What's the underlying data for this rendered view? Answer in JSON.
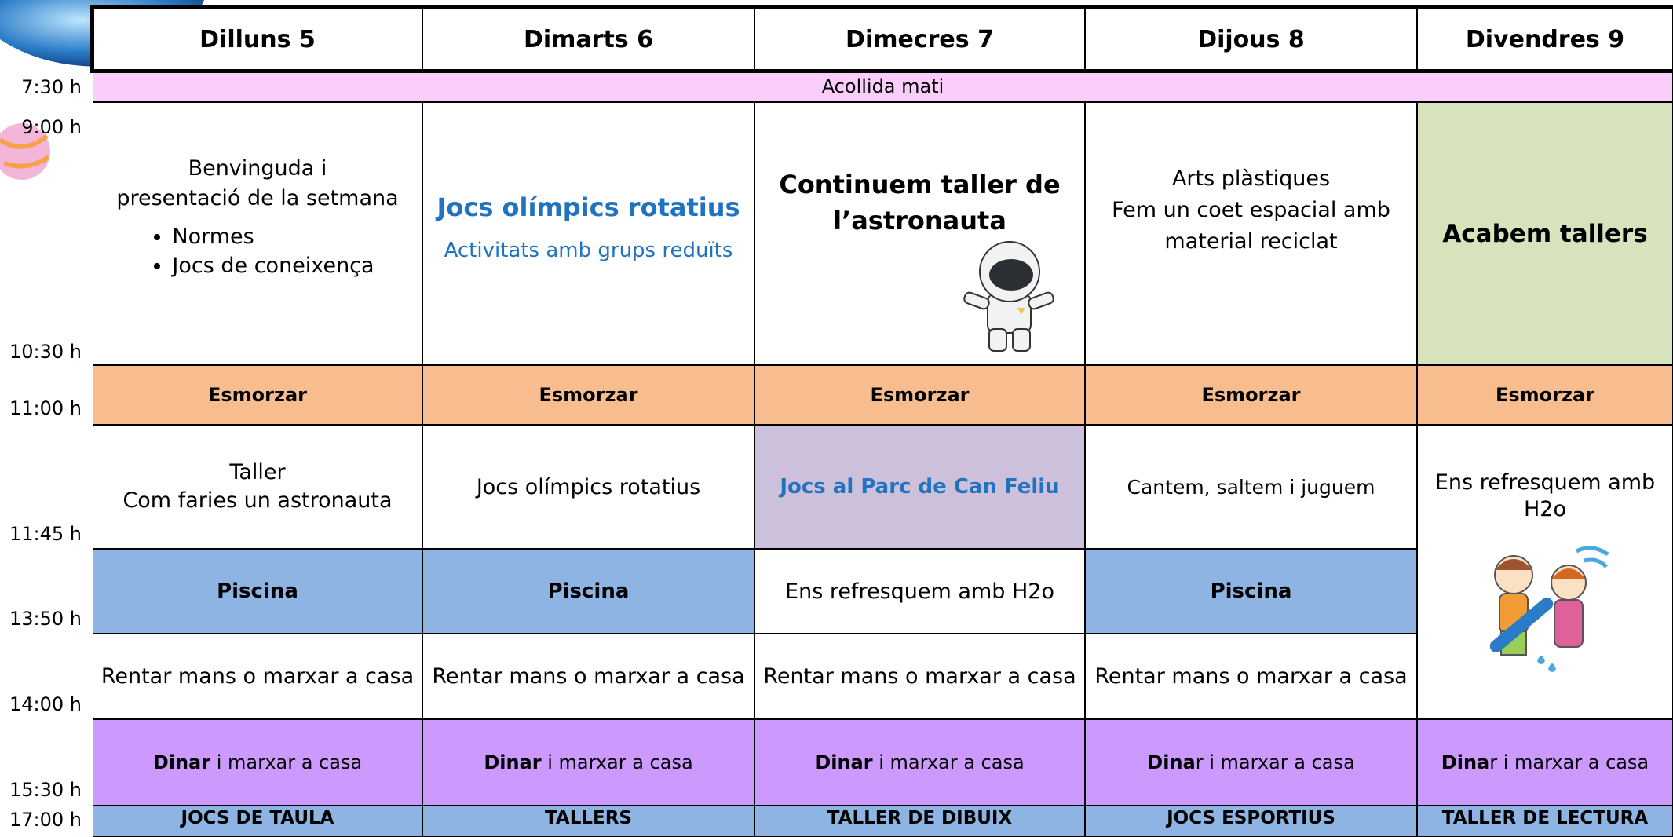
{
  "days": [
    "Dilluns 5",
    "Dimarts 6",
    "Dimecres 7",
    "Dijous 8",
    "Divendres 9"
  ],
  "times": [
    "7:30 h",
    "9:00 h",
    "10:30 h",
    "11:00 h",
    "11:45 h",
    "13:50 h",
    "14:00 h",
    "15:30 h",
    "17:00 h"
  ],
  "acollida": "Acollida mati",
  "morning": [
    {
      "lines": [
        "Benvinguda  i",
        "presentació de la setmana"
      ],
      "bullets": [
        "Normes",
        "Jocs de coneixença"
      ]
    },
    {
      "lines": [
        "Jocs olímpics rotatius"
      ],
      "subtitle": "Activitats amb grups reduïts"
    },
    {
      "lines": [
        "Continuem taller de",
        "l’astronauta"
      ]
    },
    {
      "lines": [
        "Arts plàstiques",
        "Fem un coet espacial amb",
        "material reciclat"
      ]
    },
    {
      "lines": [
        "Acabem tallers"
      ]
    }
  ],
  "esmorzar": [
    "Esmorzar",
    "Esmorzar",
    "Esmorzar",
    "Esmorzar",
    "Esmorzar"
  ],
  "midday": [
    {
      "lines": [
        "Taller",
        "Com faries un astronauta"
      ]
    },
    {
      "lines": [
        "Jocs olímpics rotatius"
      ]
    },
    {
      "lines": [
        "Jocs al Parc de Can Feliu"
      ]
    },
    {
      "lines": [
        "Cantem, saltem i juguem"
      ]
    }
  ],
  "piscina": [
    "Piscina",
    "Piscina",
    "Ens refresquem amb H2o",
    "Piscina"
  ],
  "rentar": [
    "Rentar mans o marxar a casa",
    "Rentar mans o marxar a casa",
    "Rentar mans o marxar a casa",
    "Rentar mans o marxar a casa"
  ],
  "friday_block": "Ens refresquem amb H2o",
  "dinar": [
    {
      "bold": "Dinar",
      "rest": " i marxar a casa"
    },
    {
      "bold": "Dinar",
      "rest": " i marxar a casa"
    },
    {
      "bold": "Dinar",
      "rest": " i marxar a casa"
    },
    {
      "bold": "Dina",
      "rest": "r i marxar a casa"
    },
    {
      "bold": "Dina",
      "rest": "r i marxar a casa"
    }
  ],
  "afternoon": [
    "JOCS DE TAULA",
    "TALLERS",
    "TALLER DE DIBUIX",
    "JOCS ESPORTIUS",
    "TALLER DE LECTURA"
  ]
}
